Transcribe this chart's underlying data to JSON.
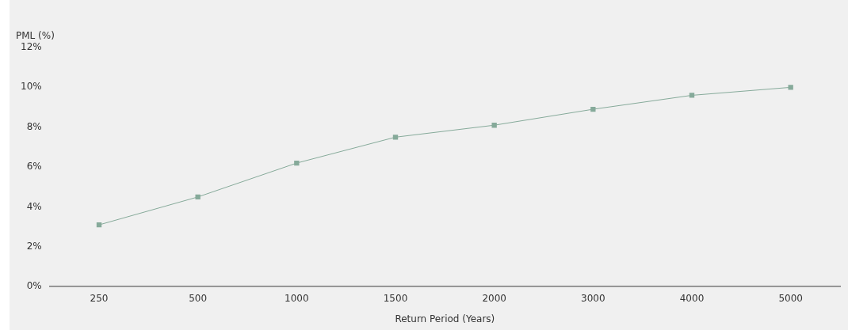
{
  "chart_data": {
    "type": "line",
    "ylabel": "PML (%)",
    "xlabel": "Return Period (Years)",
    "categories": [
      "250",
      "500",
      "1000",
      "1500",
      "2000",
      "3000",
      "4000",
      "5000"
    ],
    "series": [
      {
        "color": "#86aa9a",
        "values": [
          3.1,
          4.5,
          6.2,
          7.5,
          8.1,
          8.9,
          9.6,
          10.0
        ]
      }
    ],
    "ylim": [
      0,
      12
    ],
    "yticks": [
      {
        "value": 0,
        "label": "0%"
      },
      {
        "value": 2,
        "label": "2%"
      },
      {
        "value": 4,
        "label": "4%"
      },
      {
        "value": 6,
        "label": "6%"
      },
      {
        "value": 8,
        "label": "8%"
      },
      {
        "value": 10,
        "label": "10%"
      },
      {
        "value": 12,
        "label": "12%"
      }
    ],
    "grid": false,
    "legend": false,
    "marker": "square",
    "line_style": "solid"
  }
}
